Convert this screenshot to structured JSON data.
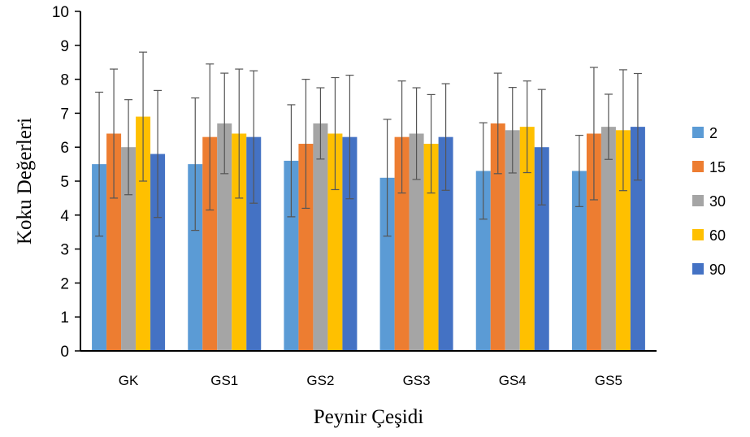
{
  "chart_data": {
    "type": "bar",
    "title": "",
    "xlabel": "Peynir Çeşidi",
    "ylabel": "Koku Değerleri",
    "ylim": [
      0,
      10
    ],
    "yticks": [
      "0",
      "1",
      "2",
      "3",
      "4",
      "5",
      "6",
      "7",
      "8",
      "9",
      "10"
    ],
    "categories": [
      "GK",
      "GS1",
      "GS2",
      "GS3",
      "GS4",
      "GS5"
    ],
    "legend_position": "right",
    "grid": false,
    "error_bars": true,
    "series": [
      {
        "name": "2",
        "color": "#5B9BD5",
        "values": [
          5.5,
          5.5,
          5.6,
          5.1,
          5.3,
          5.3
        ],
        "errors": [
          2.12,
          1.95,
          1.65,
          1.72,
          1.42,
          1.05
        ]
      },
      {
        "name": "15",
        "color": "#ED7D31",
        "values": [
          6.4,
          6.3,
          6.1,
          6.3,
          6.7,
          6.4
        ],
        "errors": [
          1.9,
          2.15,
          1.9,
          1.65,
          1.48,
          1.95
        ]
      },
      {
        "name": "30",
        "color": "#A5A5A5",
        "values": [
          6.0,
          6.7,
          6.7,
          6.4,
          6.5,
          6.6
        ],
        "errors": [
          1.4,
          1.48,
          1.05,
          1.35,
          1.26,
          0.96
        ]
      },
      {
        "name": "60",
        "color": "#FFC000",
        "values": [
          6.9,
          6.4,
          6.4,
          6.1,
          6.6,
          6.5
        ],
        "errors": [
          1.9,
          1.9,
          1.65,
          1.45,
          1.35,
          1.78
        ]
      },
      {
        "name": "90",
        "color": "#4472C4",
        "values": [
          5.8,
          6.3,
          6.3,
          6.3,
          6.0,
          6.6
        ],
        "errors": [
          1.87,
          1.95,
          1.82,
          1.57,
          1.7,
          1.57
        ]
      }
    ]
  }
}
